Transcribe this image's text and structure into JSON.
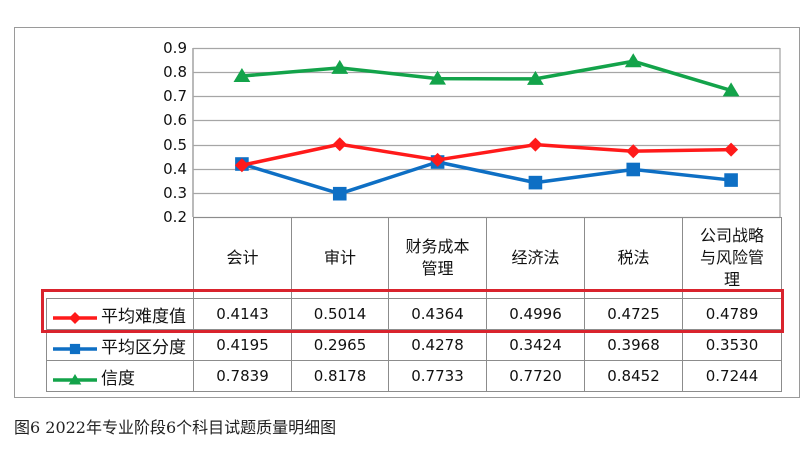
{
  "chart_data": {
    "type": "line",
    "title": "图6  2022年专业阶段6个科目试题质量明细图",
    "xlabel": "",
    "ylabel": "",
    "ylim": [
      0.2,
      0.9
    ],
    "yticks": [
      "0.9",
      "0.8",
      "0.7",
      "0.6",
      "0.5",
      "0.4",
      "0.3",
      "0.2"
    ],
    "grid": true,
    "legend_position": "data-table-left",
    "categories": [
      "会计",
      "审计",
      "财务成本管理",
      "经济法",
      "税法",
      "公司战略与风险管理"
    ],
    "category_display": [
      [
        "会计"
      ],
      [
        "审计"
      ],
      [
        "财务成本",
        "管理"
      ],
      [
        "经济法"
      ],
      [
        "税法"
      ],
      [
        "公司战略",
        "与风险管",
        "理"
      ]
    ],
    "series": [
      {
        "name": "平均难度值",
        "color": "#ff1a1a",
        "marker": "diamond",
        "values": [
          0.4143,
          0.5014,
          0.4364,
          0.4996,
          0.4725,
          0.4789
        ],
        "labels": [
          "0.4143",
          "0.5014",
          "0.4364",
          "0.4996",
          "0.4725",
          "0.4789"
        ]
      },
      {
        "name": "平均区分度",
        "color": "#0e6fc4",
        "marker": "square",
        "values": [
          0.4195,
          0.2965,
          0.4278,
          0.3424,
          0.3968,
          0.353
        ],
        "labels": [
          "0.4195",
          "0.2965",
          "0.4278",
          "0.3424",
          "0.3968",
          "0.3530"
        ]
      },
      {
        "name": "信度",
        "color": "#13a34a",
        "marker": "triangle",
        "values": [
          0.7839,
          0.8178,
          0.7733,
          0.772,
          0.8452,
          0.7244
        ],
        "labels": [
          "0.7839",
          "0.8178",
          "0.7733",
          "0.7720",
          "0.8452",
          "0.7244"
        ]
      }
    ],
    "annotations": [
      {
        "type": "highlight-box",
        "target": "平均难度值 row",
        "color": "#d9232d"
      }
    ]
  },
  "caption": "图6  2022年专业阶段6个科目试题质量明细图",
  "colors": {
    "highlight": "#d9232d",
    "grid": "#a6a6a6",
    "border": "#8c8c8c"
  }
}
